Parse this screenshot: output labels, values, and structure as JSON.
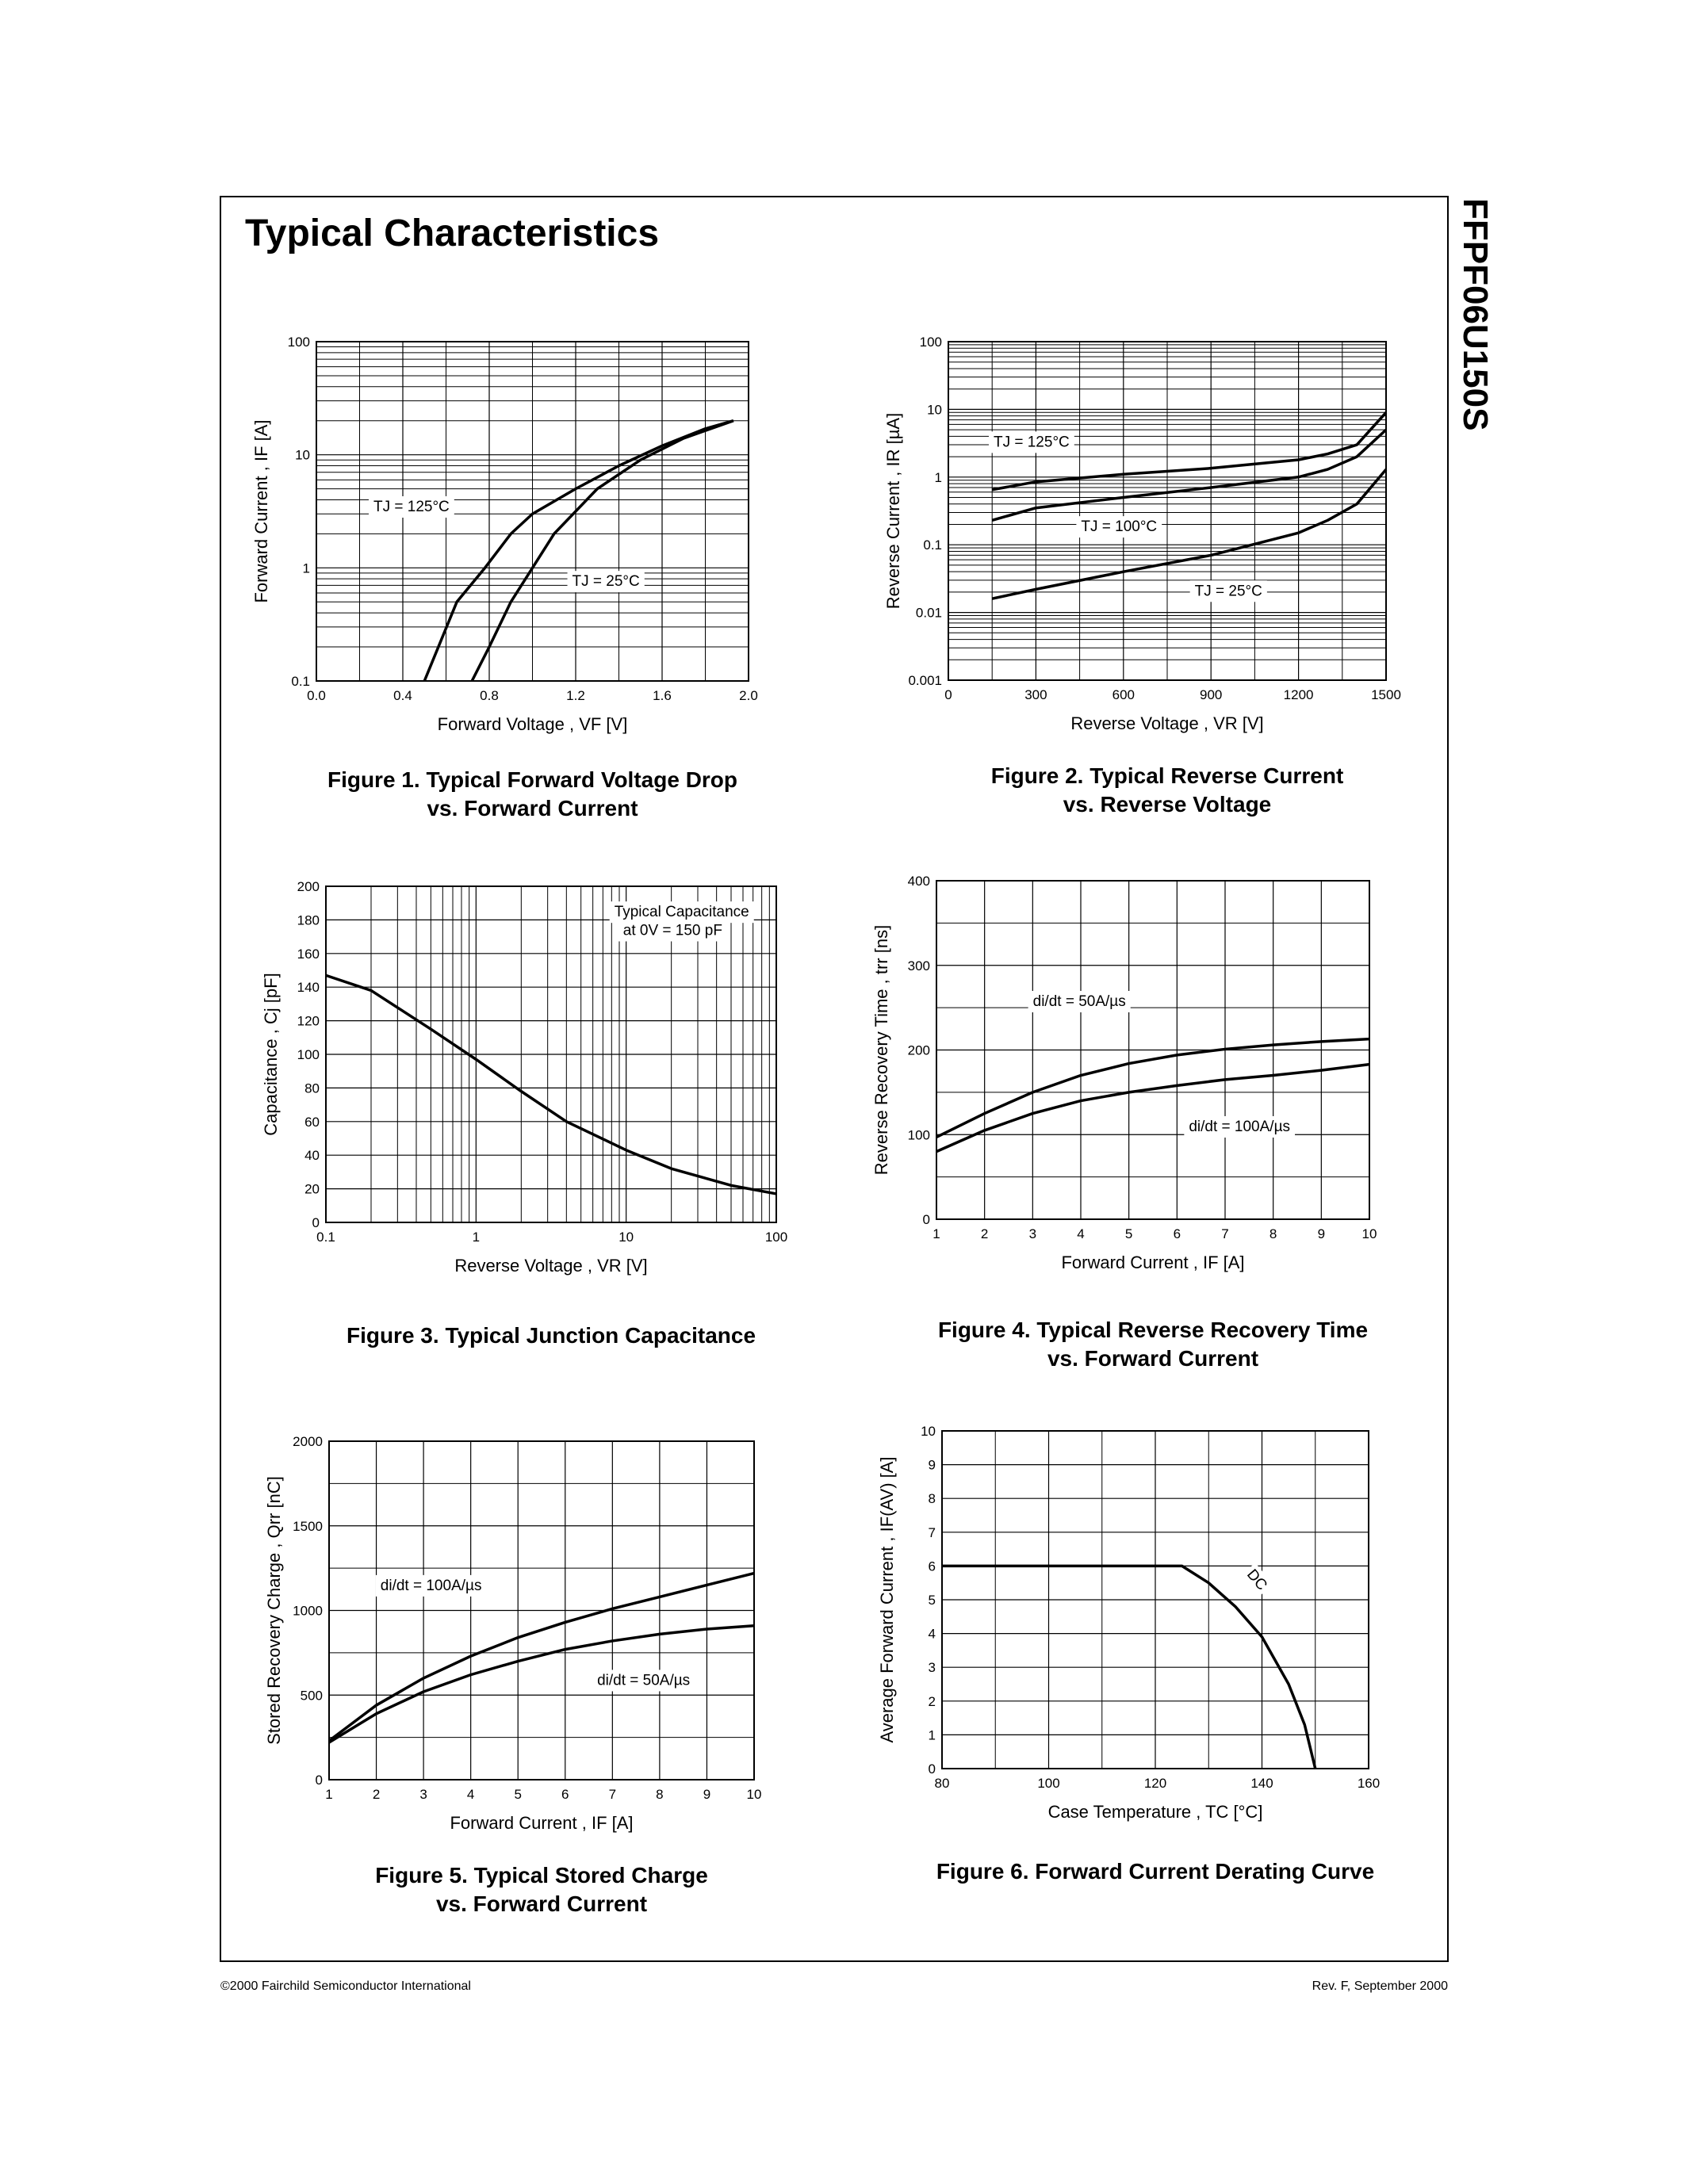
{
  "header": {
    "title": "Typical Characteristics",
    "part_number": "FFPF06U150S"
  },
  "footer": {
    "left": "©2000 Fairchild Semiconductor International",
    "right": "Rev. F, September 2000"
  },
  "chart_data": [
    {
      "type": "line",
      "title": [
        "Figure 1. Typical Forward Voltage Drop",
        "vs. Forward Current"
      ],
      "xlabel": "Forward Voltage , VF [V]",
      "ylabel": "Forward Current , IF [A]",
      "xlim": [
        0,
        2.0
      ],
      "ylim": [
        0.1,
        100
      ],
      "ylog": true,
      "grid": true,
      "xminor": true,
      "yminor": true,
      "xticks": [
        {
          "value": 0,
          "label": "0.0"
        },
        0.4,
        0.8,
        1.2,
        1.6,
        {
          "value": 2,
          "label": "2.0"
        }
      ],
      "yticks": [
        0.1,
        1,
        10,
        100
      ],
      "series": [
        {
          "name": "TJ = 125°C",
          "color": "#000000",
          "x": [
            0.5,
            0.65,
            0.78,
            0.9,
            1.0,
            1.2,
            1.4,
            1.6,
            1.8,
            1.93
          ],
          "values": [
            0.1,
            0.5,
            1,
            2,
            3,
            5,
            8,
            12,
            17,
            20
          ]
        },
        {
          "name": "TJ = 25°C",
          "color": "#000000",
          "x": [
            0.72,
            0.8,
            0.9,
            1.1,
            1.3,
            1.5,
            1.7,
            1.93
          ],
          "values": [
            0.1,
            0.2,
            0.5,
            2,
            5,
            9,
            14,
            20
          ]
        }
      ]
    },
    {
      "type": "line",
      "title": [
        "Figure 2. Typical Reverse Current",
        "vs. Reverse Voltage"
      ],
      "xlabel": "Reverse Voltage , VR [V]",
      "ylabel": "Reverse Current , IR [µA]",
      "xlim": [
        0,
        1500
      ],
      "ylim": [
        0.001,
        100
      ],
      "ylog": true,
      "grid": true,
      "xminor": true,
      "yminor": true,
      "xticks": [
        0,
        300,
        600,
        900,
        1200,
        1500
      ],
      "yticks": [
        0.001,
        0.01,
        0.1,
        1,
        10,
        100
      ],
      "series": [
        {
          "name": "TJ = 125°C",
          "color": "#000000",
          "x": [
            150,
            300,
            600,
            900,
            1200,
            1300,
            1400,
            1500
          ],
          "values": [
            0.65,
            0.85,
            1.1,
            1.35,
            1.8,
            2.2,
            3,
            9
          ]
        },
        {
          "name": "TJ = 100°C",
          "color": "#000000",
          "x": [
            150,
            300,
            600,
            900,
            1200,
            1300,
            1400,
            1500
          ],
          "values": [
            0.23,
            0.35,
            0.5,
            0.7,
            1.0,
            1.3,
            2,
            5
          ]
        },
        {
          "name": "TJ = 25°C",
          "color": "#000000",
          "x": [
            150,
            300,
            600,
            900,
            1200,
            1300,
            1400,
            1500
          ],
          "values": [
            0.016,
            0.022,
            0.04,
            0.07,
            0.15,
            0.23,
            0.4,
            1.3
          ]
        }
      ]
    },
    {
      "type": "line",
      "title": [
        "Figure 3. Typical Junction Capacitance"
      ],
      "xlabel": "Reverse Voltage , VR [V]",
      "ylabel": "Capacitance , Cj [pF]",
      "xlim": [
        0.1,
        100
      ],
      "ylim": [
        0,
        200
      ],
      "xlog": true,
      "grid": true,
      "xminor": true,
      "yminor": false,
      "xticks": [
        0.1,
        1,
        10,
        100
      ],
      "yticks": [
        0,
        20,
        40,
        60,
        80,
        100,
        120,
        140,
        160,
        180,
        200
      ],
      "annotations": [
        "Typical Capacitance",
        "at  0V = 150 pF"
      ],
      "series": [
        {
          "color": "#000000",
          "x": [
            0.1,
            0.2,
            0.5,
            1,
            2,
            4,
            10,
            20,
            50,
            100
          ],
          "values": [
            147,
            138,
            115,
            97,
            78,
            60,
            43,
            32,
            22,
            17
          ]
        }
      ]
    },
    {
      "type": "line",
      "title": [
        "Figure 4. Typical Reverse Recovery Time",
        "vs. Forward Current"
      ],
      "xlabel": "Forward Current , IF [A]",
      "ylabel": "Reverse Recovery Time , trr [ns]",
      "xlim": [
        1,
        10
      ],
      "ylim": [
        0,
        400
      ],
      "grid": true,
      "xminor": false,
      "yminor": true,
      "xticks": [
        1,
        2,
        3,
        4,
        5,
        6,
        7,
        8,
        9,
        10
      ],
      "yticks": [
        0,
        100,
        200,
        300,
        400
      ],
      "series": [
        {
          "name": "di/dt = 50A/µs",
          "color": "#000000",
          "x": [
            1,
            2,
            3,
            4,
            5,
            6,
            7,
            8,
            9,
            10
          ],
          "values": [
            97,
            125,
            150,
            170,
            184,
            194,
            201,
            206,
            210,
            213
          ]
        },
        {
          "name": "di/dt = 100A/µs",
          "color": "#000000",
          "x": [
            1,
            2,
            3,
            4,
            5,
            6,
            7,
            8,
            9,
            10
          ],
          "values": [
            80,
            105,
            125,
            140,
            150,
            158,
            165,
            170,
            176,
            183
          ]
        }
      ]
    },
    {
      "type": "line",
      "title": [
        "Figure 5. Typical Stored Charge",
        "vs. Forward Current"
      ],
      "xlabel": "Forward Current , IF [A]",
      "ylabel": "Stored Recovery Charge , Qrr [nC]",
      "xlim": [
        1,
        10
      ],
      "ylim": [
        0,
        2000
      ],
      "grid": true,
      "xminor": false,
      "yminor": true,
      "xticks": [
        1,
        2,
        3,
        4,
        5,
        6,
        7,
        8,
        9,
        10
      ],
      "yticks": [
        0,
        500,
        1000,
        1500,
        2000
      ],
      "series": [
        {
          "name": "di/dt = 100A/µs",
          "color": "#000000",
          "x": [
            1,
            2,
            3,
            4,
            5,
            6,
            7,
            8,
            9,
            10
          ],
          "values": [
            230,
            440,
            600,
            730,
            840,
            930,
            1010,
            1080,
            1150,
            1220
          ]
        },
        {
          "name": "di/dt = 50A/µs",
          "color": "#000000",
          "x": [
            1,
            2,
            3,
            4,
            5,
            6,
            7,
            8,
            9,
            10
          ],
          "values": [
            220,
            390,
            520,
            620,
            700,
            770,
            820,
            860,
            890,
            910
          ]
        }
      ]
    },
    {
      "type": "line",
      "title": [
        "Figure 6. Forward Current Derating Curve"
      ],
      "xlabel": "Case Temperature , TC [°C]",
      "ylabel": "Average Forward Current , IF(AV) [A]",
      "xlim": [
        80,
        160
      ],
      "ylim": [
        0,
        10
      ],
      "grid": true,
      "xminor": true,
      "yminor": false,
      "xticks": [
        80,
        100,
        120,
        140,
        160
      ],
      "yticks": [
        0,
        1,
        2,
        3,
        4,
        5,
        6,
        7,
        8,
        9,
        10
      ],
      "series": [
        {
          "name": "DC",
          "color": "#000000",
          "x": [
            80,
            125,
            130,
            135,
            140,
            145,
            148,
            150
          ],
          "values": [
            6,
            6,
            5.5,
            4.8,
            3.9,
            2.5,
            1.3,
            0
          ]
        }
      ]
    }
  ]
}
